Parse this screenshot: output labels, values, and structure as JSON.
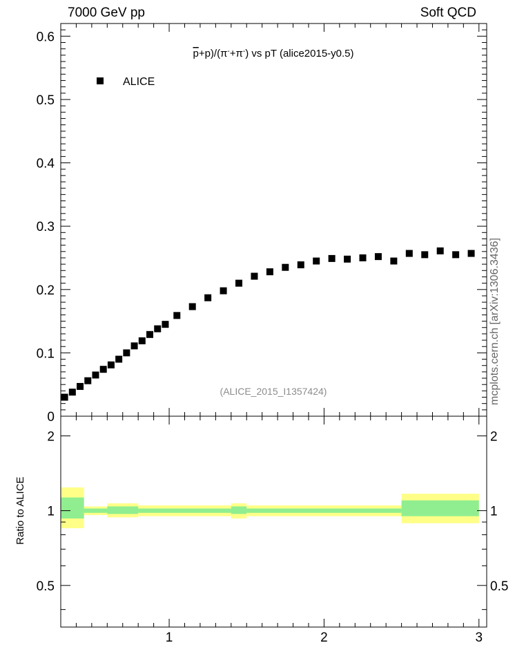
{
  "header": {
    "energy": "7000 GeV pp",
    "category": "Soft QCD"
  },
  "side_label": "mcplots.cern.ch [arXiv:1306.3436]",
  "colors": {
    "data_marker": "#000000",
    "band_outer": "#ffff88",
    "band_inner": "#90ee90",
    "watermark": "#8c8c8c",
    "side_label": "#666666"
  },
  "chart_data": [
    {
      "type": "scatter",
      "title": "(p̄+p)/(π⁻+π⁻) vs pT (alice2015-y0.5)",
      "title_parts": {
        "pbar": "p",
        "a": "+p)/(π",
        "b": "+π",
        "c": ") vs pT (alice2015-y0.5)"
      },
      "watermark": "(ALICE_2015_I1357424)",
      "legend": {
        "position": "top-left",
        "entries": [
          "ALICE"
        ]
      },
      "xlim": [
        0.3,
        3.05
      ],
      "ylim": [
        0,
        0.62
      ],
      "yticks": [
        0,
        0.1,
        0.2,
        0.3,
        0.4,
        0.5,
        0.6
      ],
      "ytick_labels": [
        "0",
        "0.1",
        "0.2",
        "0.3",
        "0.4",
        "0.5",
        "0.6"
      ],
      "grid": false,
      "series": [
        {
          "name": "ALICE",
          "marker": "square",
          "x": [
            0.325,
            0.375,
            0.425,
            0.475,
            0.525,
            0.575,
            0.625,
            0.675,
            0.725,
            0.775,
            0.825,
            0.875,
            0.925,
            0.975,
            1.05,
            1.15,
            1.25,
            1.35,
            1.45,
            1.55,
            1.65,
            1.75,
            1.85,
            1.95,
            2.05,
            2.15,
            2.25,
            2.35,
            2.45,
            2.55,
            2.65,
            2.75,
            2.85,
            2.95
          ],
          "y": [
            0.03,
            0.038,
            0.047,
            0.056,
            0.065,
            0.074,
            0.081,
            0.09,
            0.1,
            0.111,
            0.119,
            0.129,
            0.138,
            0.145,
            0.159,
            0.173,
            0.187,
            0.198,
            0.21,
            0.221,
            0.228,
            0.235,
            0.239,
            0.245,
            0.249,
            0.248,
            0.25,
            0.252,
            0.245,
            0.257,
            0.255,
            0.261,
            0.255,
            0.257
          ]
        }
      ]
    },
    {
      "type": "area",
      "ylabel": "Ratio to ALICE",
      "xlim": [
        0.3,
        3.05
      ],
      "ylim": [
        0.34,
        2.4
      ],
      "xticks": [
        1,
        2,
        3
      ],
      "xtick_labels": [
        "1",
        "2",
        "3"
      ],
      "yticks": [
        0.5,
        1,
        2
      ],
      "ytick_labels": [
        "0.5",
        "1",
        "2"
      ],
      "grid": false,
      "bands": {
        "x_edges": [
          0.3,
          0.45,
          0.6,
          0.8,
          1.4,
          1.5,
          2.5,
          3.0
        ],
        "outer_lo": [
          0.85,
          0.96,
          0.94,
          0.95,
          0.93,
          0.95,
          0.89,
          0.89
        ],
        "outer_hi": [
          1.24,
          1.04,
          1.07,
          1.05,
          1.07,
          1.05,
          1.17,
          1.17
        ],
        "inner_lo": [
          0.93,
          0.98,
          0.97,
          0.98,
          0.97,
          0.98,
          0.95,
          0.95
        ],
        "inner_hi": [
          1.13,
          1.02,
          1.04,
          1.02,
          1.04,
          1.02,
          1.1,
          1.1
        ]
      }
    }
  ]
}
